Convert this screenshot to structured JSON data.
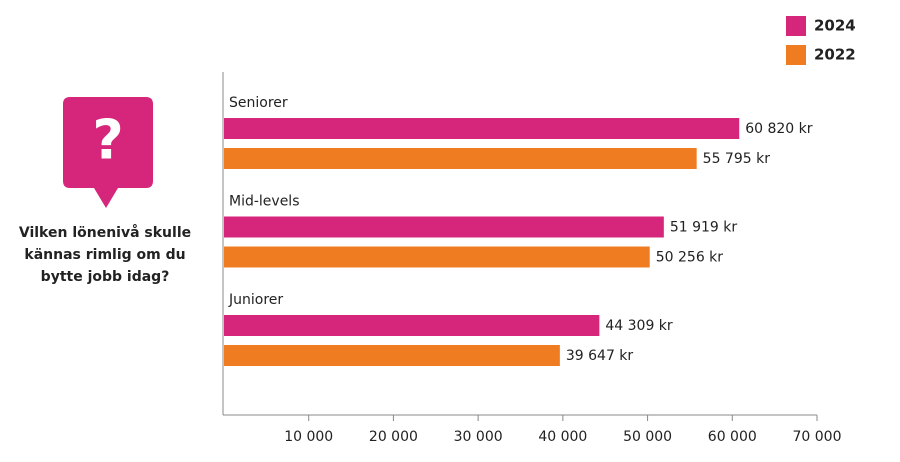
{
  "chart_data": {
    "type": "bar",
    "orientation": "horizontal",
    "categories": [
      "Seniorer",
      "Mid-levels",
      "Juniorer"
    ],
    "series": [
      {
        "name": "2024",
        "color": "#d6267b",
        "values": [
          60820,
          51919,
          44309
        ],
        "value_labels": [
          "60 820 kr",
          "51 919 kr",
          "44 309 kr"
        ]
      },
      {
        "name": "2022",
        "color": "#f07c22",
        "values": [
          55795,
          50256,
          39647
        ],
        "value_labels": [
          "55 795 kr",
          "50 256 kr",
          "39 647 kr"
        ]
      }
    ],
    "xlim": [
      0,
      70000
    ],
    "xticks": [
      {
        "value": 10000,
        "label": "10 000"
      },
      {
        "value": 20000,
        "label": "20 000"
      },
      {
        "value": 30000,
        "label": "30 000"
      },
      {
        "value": 40000,
        "label": "40 000"
      },
      {
        "value": 50000,
        "label": "50 000"
      },
      {
        "value": 60000,
        "label": "60 000"
      },
      {
        "value": 70000,
        "label": "70 000"
      }
    ],
    "legend": "top-right"
  },
  "sidebar": {
    "icon": "?",
    "question": "Vilken lönenivå skulle kännas rimlig om du bytte jobb idag?"
  }
}
